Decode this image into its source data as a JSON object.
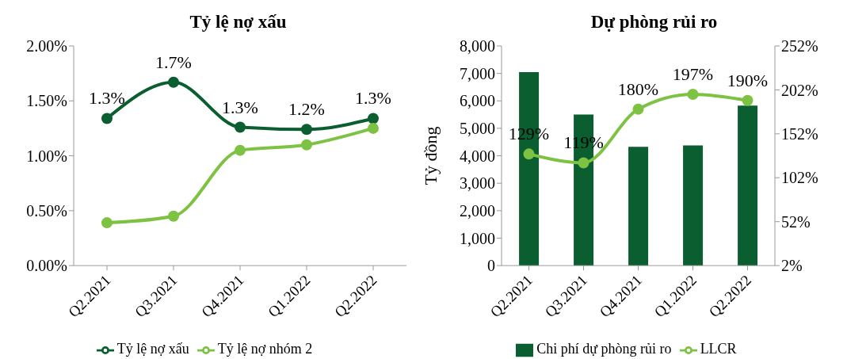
{
  "chart_data": [
    {
      "type": "line",
      "title": "Tỷ lệ nợ xấu",
      "categories": [
        "Q2.2021",
        "Q3.2021",
        "Q4.2021",
        "Q1.2022",
        "Q2.2022"
      ],
      "series": [
        {
          "name": "Tỷ lệ nợ xấu",
          "color": "#0b5e2f",
          "values": [
            1.34,
            1.67,
            1.26,
            1.24,
            1.34
          ],
          "value_labels": [
            "1.3%",
            "1.7%",
            "1.3%",
            "1.2%",
            "1.3%"
          ]
        },
        {
          "name": "Tỷ lệ nợ nhóm 2",
          "color": "#7dc242",
          "values": [
            0.39,
            0.45,
            1.05,
            1.1,
            1.25
          ]
        }
      ],
      "ylim": [
        0,
        2
      ],
      "yticks": [
        {
          "value": 0,
          "label": "0.00%"
        },
        {
          "value": 0.5,
          "label": "0.50%"
        },
        {
          "value": 1,
          "label": "1.00%"
        },
        {
          "value": 1.5,
          "label": "1.50%"
        },
        {
          "value": 2,
          "label": "2.00%"
        }
      ],
      "grid": false,
      "legend": "bottom",
      "marker": "circle",
      "line_style": "solid"
    },
    {
      "type": "bar",
      "title": "Dự phòng rủi ro",
      "ylabel": "Tỷ đồng",
      "categories": [
        "Q2.2021",
        "Q3.2021",
        "Q4.2021",
        "Q1.2022",
        "Q2.2022"
      ],
      "series": [
        {
          "name": "Chi phí dự phòng rủi ro",
          "color": "#0b5e2f",
          "values": [
            7050,
            5500,
            4330,
            4380,
            5830
          ]
        },
        {
          "name": "LLCR",
          "type": "line",
          "axis": "y2",
          "color": "#7dc242",
          "values": [
            129,
            119,
            180,
            197,
            190
          ],
          "value_labels": [
            "129%",
            "119%",
            "180%",
            "197%",
            "190%"
          ]
        }
      ],
      "ylim": [
        0,
        8000
      ],
      "yticks": [
        {
          "value": 0,
          "label": "0"
        },
        {
          "value": 1000,
          "label": "1,000"
        },
        {
          "value": 2000,
          "label": "2,000"
        },
        {
          "value": 3000,
          "label": "3,000"
        },
        {
          "value": 4000,
          "label": "4,000"
        },
        {
          "value": 5000,
          "label": "5,000"
        },
        {
          "value": 6000,
          "label": "6,000"
        },
        {
          "value": 7000,
          "label": "7,000"
        },
        {
          "value": 8000,
          "label": "8,000"
        }
      ],
      "y2lim": [
        2,
        252
      ],
      "y2ticks": [
        {
          "value": 2,
          "label": "2%"
        },
        {
          "value": 52,
          "label": "52%"
        },
        {
          "value": 102,
          "label": "102%"
        },
        {
          "value": 152,
          "label": "152%"
        },
        {
          "value": 202,
          "label": "202%"
        },
        {
          "value": 252,
          "label": "252%"
        }
      ],
      "grid": false,
      "legend": "bottom",
      "marker": "circle",
      "line_style": "solid"
    }
  ]
}
